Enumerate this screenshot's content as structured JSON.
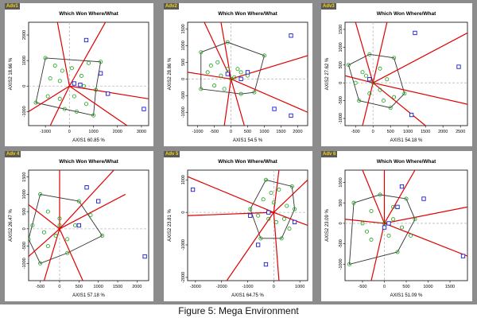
{
  "caption": "Figure 5: Mega Environment",
  "colors": {
    "background": "#8c8c8c",
    "panel": "#ffffff",
    "polygon": "#333333",
    "sector_lines": "#e00000",
    "genotype": "#1aa31a",
    "environment": "#1a1acc",
    "origin_lines": "#bbbbbb",
    "tag_text": "#ffd400"
  },
  "chart_data": [
    {
      "type": "scatter",
      "tag": "Adv1",
      "title": "Which Won Where/What",
      "xlabel": "AXIS1 60.85 %",
      "ylabel": "AXIS2 18.66 %",
      "xlim": [
        -1700,
        3300
      ],
      "ylim": [
        -1550,
        2500
      ],
      "xticks": [
        -1000,
        0,
        1000,
        2000,
        3000
      ],
      "yticks": [
        -1000,
        0,
        1000,
        2000
      ],
      "polygon": [
        [
          -1000,
          1100
        ],
        [
          1300,
          950
        ],
        [
          1100,
          -150
        ],
        [
          1000,
          -1150
        ],
        [
          -1400,
          -650
        ]
      ],
      "sector_rays": [
        [
          -500,
          2500
        ],
        [
          -800,
          -1550
        ],
        [
          -1700,
          -1000
        ],
        [
          1500,
          2500
        ],
        [
          3300,
          -500
        ],
        [
          2400,
          -1550
        ]
      ],
      "genotypes": [
        [
          -1000,
          1100
        ],
        [
          -600,
          800
        ],
        [
          -300,
          600
        ],
        [
          100,
          700
        ],
        [
          500,
          400
        ],
        [
          800,
          900
        ],
        [
          1300,
          950
        ],
        [
          -800,
          300
        ],
        [
          -400,
          200
        ],
        [
          200,
          100
        ],
        [
          600,
          0
        ],
        [
          1100,
          -150
        ],
        [
          -1400,
          -650
        ],
        [
          -900,
          -400
        ],
        [
          -400,
          -500
        ],
        [
          200,
          -400
        ],
        [
          700,
          -700
        ],
        [
          1000,
          -1150
        ],
        [
          -200,
          -900
        ],
        [
          300,
          -1000
        ]
      ],
      "environments": [
        [
          700,
          1800
        ],
        [
          1300,
          500
        ],
        [
          1600,
          -300
        ],
        [
          3100,
          -900
        ],
        [
          200,
          100
        ],
        [
          450,
          50
        ]
      ]
    },
    {
      "type": "scatter",
      "tag": "Adv2",
      "title": "Which Won Where/What",
      "xlabel": "AXIS1 54.5 %",
      "ylabel": "AXIS2 28.86 %",
      "xlim": [
        -1300,
        2300
      ],
      "ylim": [
        -1400,
        1700
      ],
      "xticks": [
        -1000,
        -500,
        0,
        500,
        1000,
        1500,
        2000
      ],
      "yticks": [
        -1000,
        -500,
        0,
        500,
        1000,
        1500
      ],
      "polygon": [
        [
          -900,
          800
        ],
        [
          -100,
          1100
        ],
        [
          1000,
          700
        ],
        [
          700,
          -400
        ],
        [
          300,
          -450
        ],
        [
          -900,
          -300
        ]
      ],
      "sector_rays": [
        [
          -800,
          1700
        ],
        [
          -300,
          1700
        ],
        [
          -1300,
          200
        ],
        [
          2300,
          700
        ],
        [
          2300,
          -1000
        ],
        [
          -200,
          -1400
        ],
        [
          400,
          -1400
        ]
      ],
      "genotypes": [
        [
          -900,
          800
        ],
        [
          -400,
          500
        ],
        [
          -100,
          1100
        ],
        [
          200,
          300
        ],
        [
          500,
          100
        ],
        [
          1000,
          700
        ],
        [
          -700,
          200
        ],
        [
          -300,
          100
        ],
        [
          0,
          0
        ],
        [
          100,
          50
        ],
        [
          -900,
          -300
        ],
        [
          -500,
          -200
        ],
        [
          -200,
          -300
        ],
        [
          300,
          -450
        ],
        [
          700,
          -400
        ],
        [
          -100,
          300
        ],
        [
          300,
          200
        ],
        [
          -600,
          400
        ]
      ],
      "environments": [
        [
          1800,
          1300
        ],
        [
          300,
          0
        ],
        [
          -100,
          150
        ],
        [
          500,
          200
        ],
        [
          1300,
          -900
        ],
        [
          1800,
          -1100
        ]
      ]
    },
    {
      "type": "scatter",
      "tag": "Adv3",
      "title": "Which Won Where/What",
      "xlabel": "AXIS1 54.18 %",
      "ylabel": "AXIS2 27.62 %",
      "xlim": [
        -800,
        2700
      ],
      "ylim": [
        -1200,
        1700
      ],
      "xticks": [
        -500,
        0,
        500,
        1000,
        1500,
        2000,
        2500
      ],
      "yticks": [
        -1000,
        -500,
        0,
        500,
        1000,
        1500
      ],
      "polygon": [
        [
          -700,
          500
        ],
        [
          -100,
          800
        ],
        [
          600,
          700
        ],
        [
          900,
          -300
        ],
        [
          500,
          -700
        ],
        [
          -400,
          -500
        ]
      ],
      "sector_rays": [
        [
          -500,
          1700
        ],
        [
          400,
          1700
        ],
        [
          -800,
          200
        ],
        [
          2700,
          1400
        ],
        [
          2700,
          -600
        ],
        [
          1500,
          -1200
        ],
        [
          -300,
          -1200
        ]
      ],
      "genotypes": [
        [
          -700,
          500
        ],
        [
          -300,
          300
        ],
        [
          -100,
          800
        ],
        [
          200,
          400
        ],
        [
          600,
          700
        ],
        [
          400,
          100
        ],
        [
          900,
          -300
        ],
        [
          500,
          -700
        ],
        [
          -400,
          -500
        ],
        [
          -100,
          -300
        ],
        [
          200,
          -200
        ],
        [
          -500,
          0
        ],
        [
          0,
          0
        ],
        [
          300,
          -500
        ],
        [
          600,
          -400
        ],
        [
          -200,
          200
        ]
      ],
      "environments": [
        [
          1200,
          1400
        ],
        [
          2450,
          450
        ],
        [
          1100,
          -900
        ],
        [
          -100,
          100
        ]
      ]
    },
    {
      "type": "scatter",
      "tag": "Adv 4",
      "title": "Which Won Where/What",
      "xlabel": "AXIS1 57.18 %",
      "ylabel": "AXIS2 26.47 %",
      "xlim": [
        -800,
        2300
      ],
      "ylim": [
        -1500,
        1700
      ],
      "xticks": [
        -500,
        0,
        500,
        1000,
        1500,
        2000
      ],
      "yticks": [
        -1000,
        -500,
        0,
        500,
        1000,
        1500
      ],
      "polygon": [
        [
          -500,
          1000
        ],
        [
          500,
          800
        ],
        [
          1100,
          -200
        ],
        [
          200,
          -700
        ],
        [
          -500,
          -1000
        ],
        [
          -800,
          -300
        ]
      ],
      "sector_rays": [
        [
          0,
          1700
        ],
        [
          1400,
          1700
        ],
        [
          1700,
          1000
        ],
        [
          -800,
          700
        ],
        [
          -800,
          -800
        ],
        [
          -400,
          -1500
        ],
        [
          600,
          -1500
        ]
      ],
      "genotypes": [
        [
          -500,
          1000
        ],
        [
          -300,
          500
        ],
        [
          0,
          300
        ],
        [
          500,
          800
        ],
        [
          800,
          400
        ],
        [
          1100,
          -200
        ],
        [
          -700,
          100
        ],
        [
          -400,
          -100
        ],
        [
          -100,
          -200
        ],
        [
          200,
          -300
        ],
        [
          200,
          -700
        ],
        [
          -500,
          -1000
        ],
        [
          -800,
          -300
        ],
        [
          -300,
          -500
        ],
        [
          0,
          100
        ],
        [
          400,
          100
        ]
      ],
      "environments": [
        [
          700,
          1200
        ],
        [
          1000,
          800
        ],
        [
          2200,
          -800
        ],
        [
          500,
          100
        ]
      ]
    },
    {
      "type": "scatter",
      "tag": "Adv 5",
      "title": "Which Won Where/What",
      "xlabel": "AXIS1 64.75 %",
      "ylabel": "AXIS2 23.81 %",
      "xlim": [
        -3300,
        1300
      ],
      "ylim": [
        -2100,
        1300
      ],
      "xticks": [
        -3000,
        -2000,
        -1000,
        0,
        1000
      ],
      "yticks": [
        -2000,
        -1000,
        0,
        1000
      ],
      "polygon": [
        [
          -300,
          1000
        ],
        [
          700,
          800
        ],
        [
          800,
          100
        ],
        [
          300,
          -800
        ],
        [
          -500,
          -800
        ],
        [
          -900,
          100
        ]
      ],
      "sector_rays": [
        [
          -3300,
          1100
        ],
        [
          -3300,
          -100
        ],
        [
          -1800,
          -2100
        ],
        [
          200,
          -2100
        ],
        [
          1300,
          -400
        ],
        [
          1300,
          1000
        ],
        [
          200,
          1300
        ]
      ],
      "genotypes": [
        [
          -300,
          1000
        ],
        [
          200,
          700
        ],
        [
          700,
          800
        ],
        [
          800,
          100
        ],
        [
          500,
          200
        ],
        [
          0,
          300
        ],
        [
          -400,
          400
        ],
        [
          -900,
          100
        ],
        [
          -600,
          -100
        ],
        [
          -200,
          -200
        ],
        [
          100,
          -300
        ],
        [
          300,
          -800
        ],
        [
          -500,
          -800
        ],
        [
          600,
          -500
        ],
        [
          -100,
          600
        ],
        [
          400,
          -200
        ]
      ],
      "environments": [
        [
          -3100,
          700
        ],
        [
          -900,
          -100
        ],
        [
          -600,
          -1000
        ],
        [
          -200,
          0
        ],
        [
          -300,
          -1600
        ],
        [
          800,
          -300
        ]
      ]
    },
    {
      "type": "scatter",
      "tag": "Adv 6",
      "title": "Which Won Where/What",
      "xlabel": "AXIS1 51.09 %",
      "ylabel": "AXIS2 23.09 %",
      "xlim": [
        -900,
        1900
      ],
      "ylim": [
        -1400,
        1300
      ],
      "xticks": [
        -500,
        0,
        500,
        1000,
        1500
      ],
      "yticks": [
        -1000,
        -500,
        0,
        500,
        1000
      ],
      "polygon": [
        [
          -700,
          500
        ],
        [
          -100,
          700
        ],
        [
          500,
          600
        ],
        [
          700,
          100
        ],
        [
          300,
          -700
        ],
        [
          -800,
          -1000
        ]
      ],
      "sector_rays": [
        [
          -500,
          1300
        ],
        [
          0,
          1300
        ],
        [
          700,
          1300
        ],
        [
          1900,
          400
        ],
        [
          1900,
          -800
        ],
        [
          -300,
          -1400
        ],
        [
          -900,
          100
        ]
      ],
      "genotypes": [
        [
          -700,
          500
        ],
        [
          -300,
          300
        ],
        [
          -100,
          700
        ],
        [
          200,
          400
        ],
        [
          500,
          600
        ],
        [
          700,
          100
        ],
        [
          400,
          -100
        ],
        [
          0,
          0
        ],
        [
          -400,
          -200
        ],
        [
          -800,
          -1000
        ],
        [
          -300,
          -400
        ],
        [
          100,
          -300
        ],
        [
          300,
          -700
        ],
        [
          -500,
          0
        ],
        [
          600,
          -300
        ],
        [
          200,
          100
        ]
      ],
      "environments": [
        [
          400,
          900
        ],
        [
          900,
          600
        ],
        [
          1800,
          -800
        ],
        [
          0,
          -100
        ],
        [
          100,
          0
        ],
        [
          300,
          400
        ]
      ]
    }
  ]
}
